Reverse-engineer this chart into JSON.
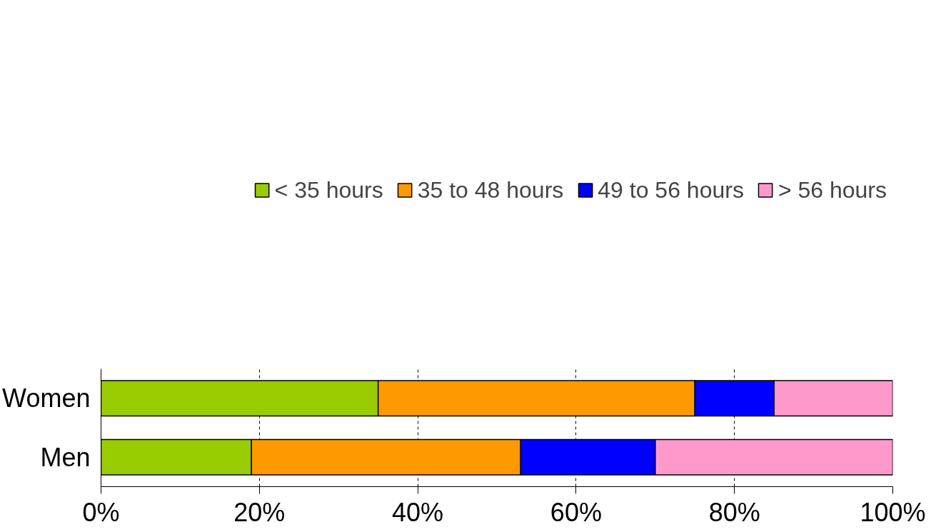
{
  "chart_data": {
    "type": "bar",
    "orientation": "horizontal",
    "stacked": true,
    "categories": [
      "Women",
      "Men"
    ],
    "series": [
      {
        "name": "< 35 hours",
        "color": "#99cc00",
        "values": [
          35,
          19
        ]
      },
      {
        "name": "35 to 48 hours",
        "color": "#ff9900",
        "values": [
          40,
          34
        ]
      },
      {
        "name": "49 to 56 hours",
        "color": "#0000ff",
        "values": [
          10,
          17
        ]
      },
      {
        "name": "> 56 hours",
        "color": "#ff99cc",
        "values": [
          15,
          30
        ]
      }
    ],
    "xlim": [
      0,
      100
    ],
    "xticks": [
      {
        "value": 0,
        "label": "0%"
      },
      {
        "value": 20,
        "label": "20%"
      },
      {
        "value": 40,
        "label": "40%"
      },
      {
        "value": 60,
        "label": "60%"
      },
      {
        "value": 80,
        "label": "80%"
      },
      {
        "value": 100,
        "label": "100%"
      }
    ],
    "grid": "x",
    "legend": "top"
  }
}
